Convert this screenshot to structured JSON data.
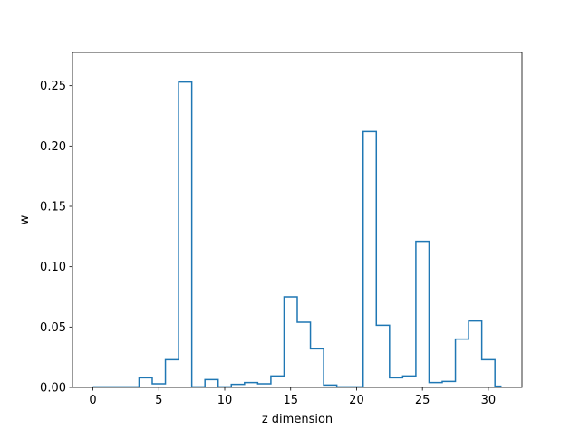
{
  "chart_data": {
    "type": "step",
    "title": "",
    "xlabel": "z dimension",
    "ylabel": "w",
    "xlim": [
      -1.55,
      32.55
    ],
    "ylim": [
      0,
      0.2775
    ],
    "x_ticks": [
      0,
      5,
      10,
      15,
      20,
      25,
      30
    ],
    "y_ticks": [
      0.0,
      0.05,
      0.1,
      0.15,
      0.2,
      0.25
    ],
    "x_tick_labels": [
      "0",
      "5",
      "10",
      "15",
      "20",
      "25",
      "30"
    ],
    "y_tick_labels": [
      "0.00",
      "0.05",
      "0.10",
      "0.15",
      "0.20",
      "0.25"
    ],
    "grid": false,
    "line_color": "#1f77b4",
    "step_where": "mid",
    "x": [
      0,
      1,
      2,
      3,
      4,
      5,
      6,
      7,
      8,
      9,
      10,
      11,
      12,
      13,
      14,
      15,
      16,
      17,
      18,
      19,
      20,
      21,
      22,
      23,
      24,
      25,
      26,
      27,
      28,
      29,
      30,
      31
    ],
    "values": [
      0.0005,
      0.0005,
      0.0005,
      0.0005,
      0.008,
      0.003,
      0.023,
      0.253,
      0.0005,
      0.0065,
      0.0005,
      0.0025,
      0.004,
      0.003,
      0.0095,
      0.075,
      0.054,
      0.032,
      0.002,
      0.0005,
      0.0005,
      0.212,
      0.0515,
      0.008,
      0.0095,
      0.121,
      0.004,
      0.005,
      0.04,
      0.055,
      0.023,
      0.001
    ]
  }
}
